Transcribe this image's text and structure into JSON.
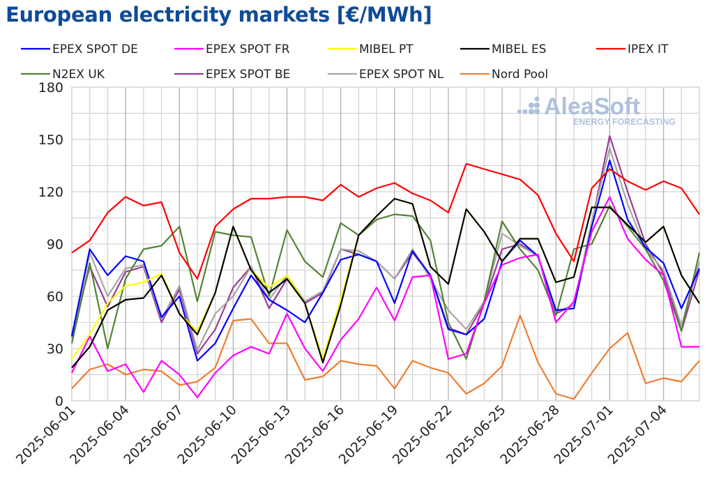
{
  "title": "European electricity markets [€/MWh]",
  "logo": {
    "name": "AleaSoft",
    "tagline": "ENERGY FORECASTING",
    "color": "#a7bcd9"
  },
  "chart_data": {
    "type": "line",
    "title": "European electricity markets [€/MWh]",
    "xlabel": "",
    "ylabel": "",
    "ylim": [
      0,
      180
    ],
    "yticks": [
      0,
      30,
      60,
      90,
      120,
      150,
      180
    ],
    "grid": true,
    "legend_placement": "top",
    "x": [
      "2025-06-01",
      "2025-06-02",
      "2025-06-03",
      "2025-06-04",
      "2025-06-05",
      "2025-06-06",
      "2025-06-07",
      "2025-06-08",
      "2025-06-09",
      "2025-06-10",
      "2025-06-11",
      "2025-06-12",
      "2025-06-13",
      "2025-06-14",
      "2025-06-15",
      "2025-06-16",
      "2025-06-17",
      "2025-06-18",
      "2025-06-19",
      "2025-06-20",
      "2025-06-21",
      "2025-06-22",
      "2025-06-23",
      "2025-06-24",
      "2025-06-25",
      "2025-06-26",
      "2025-06-27",
      "2025-06-28",
      "2025-06-29",
      "2025-06-30",
      "2025-07-01",
      "2025-07-02",
      "2025-07-03",
      "2025-07-04",
      "2025-07-05",
      "2025-07-06"
    ],
    "xticks": [
      "2025-06-01",
      "2025-06-04",
      "2025-06-07",
      "2025-06-10",
      "2025-06-13",
      "2025-06-16",
      "2025-06-19",
      "2025-06-22",
      "2025-06-25",
      "2025-06-28",
      "2025-07-01",
      "2025-07-04"
    ],
    "series": [
      {
        "name": "EPEX SPOT DE",
        "color": "#0000ff",
        "values": [
          37,
          87,
          72,
          83,
          80,
          48,
          60,
          23,
          33,
          53,
          72,
          58,
          52,
          45,
          62,
          81,
          84,
          80,
          56,
          86,
          72,
          41,
          38,
          47,
          80,
          92,
          83,
          52,
          53,
          100,
          138,
          104,
          88,
          79,
          53,
          76
        ]
      },
      {
        "name": "EPEX SPOT FR",
        "color": "#ff00ff",
        "values": [
          16,
          37,
          17,
          21,
          5,
          23,
          15,
          2,
          16,
          26,
          31,
          27,
          50,
          30,
          17,
          35,
          47,
          65,
          46,
          71,
          72,
          24,
          27,
          56,
          78,
          82,
          84,
          45,
          57,
          97,
          117,
          93,
          81,
          72,
          31,
          31
        ]
      },
      {
        "name": "MIBEL PT",
        "color": "#ffff00",
        "values": [
          24,
          38,
          56,
          66,
          68,
          73,
          50,
          40,
          62,
          100,
          75,
          65,
          72,
          56,
          24,
          58,
          95,
          106,
          116,
          113,
          77,
          67,
          110,
          97,
          80,
          93,
          93,
          68,
          71,
          111,
          111,
          101,
          91,
          100,
          72,
          56
        ]
      },
      {
        "name": "MIBEL ES",
        "color": "#000000",
        "values": [
          19,
          31,
          52,
          58,
          59,
          72,
          50,
          38,
          62,
          100,
          75,
          62,
          70,
          56,
          22,
          55,
          95,
          106,
          116,
          113,
          77,
          67,
          110,
          97,
          80,
          93,
          93,
          68,
          71,
          111,
          111,
          101,
          91,
          100,
          72,
          56
        ]
      },
      {
        "name": "IPEX IT",
        "color": "#ff0000",
        "values": [
          85,
          92,
          108,
          117,
          112,
          114,
          85,
          70,
          100,
          110,
          116,
          116,
          117,
          117,
          115,
          124,
          117,
          122,
          125,
          119,
          115,
          108,
          136,
          133,
          130,
          127,
          118,
          96,
          80,
          122,
          133,
          126,
          121,
          126,
          122,
          107
        ]
      },
      {
        "name": "N2EX UK",
        "color": "#548235",
        "values": [
          33,
          79,
          30,
          70,
          87,
          89,
          100,
          57,
          97,
          95,
          94,
          60,
          98,
          80,
          71,
          102,
          95,
          104,
          107,
          106,
          92,
          45,
          24,
          57,
          103,
          87,
          75,
          49,
          87,
          90,
          112,
          100,
          87,
          69,
          40,
          85
        ]
      },
      {
        "name": "EPEX SPOT BE",
        "color": "#963c96",
        "values": [
          38,
          77,
          54,
          74,
          77,
          45,
          64,
          27,
          41,
          65,
          77,
          53,
          70,
          56,
          62,
          87,
          84,
          80,
          70,
          85,
          72,
          42,
          38,
          56,
          87,
          90,
          83,
          50,
          55,
          102,
          152,
          120,
          90,
          73,
          40,
          75
        ]
      },
      {
        "name": "EPEX SPOT NL",
        "color": "#a6a6a6",
        "values": [
          36,
          85,
          60,
          76,
          78,
          47,
          66,
          29,
          50,
          60,
          77,
          58,
          72,
          57,
          63,
          87,
          86,
          80,
          70,
          87,
          70,
          52,
          41,
          57,
          96,
          89,
          83,
          51,
          55,
          103,
          145,
          113,
          87,
          75,
          43,
          80
        ]
      },
      {
        "name": "Nord Pool",
        "color": "#ed7d31",
        "values": [
          7,
          18,
          21,
          15,
          18,
          17,
          9,
          11,
          19,
          46,
          47,
          33,
          33,
          12,
          14,
          23,
          21,
          20,
          7,
          23,
          19,
          16,
          4,
          10,
          20,
          49,
          22,
          4,
          1,
          16,
          30,
          39,
          10,
          13,
          11,
          23
        ]
      }
    ]
  }
}
